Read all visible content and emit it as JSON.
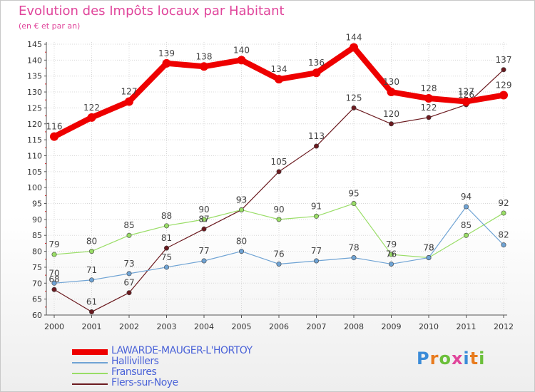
{
  "header": {
    "title": "Evolution des Impôts locaux par Habitant",
    "subtitle": "(en € et par an)"
  },
  "colors": {
    "title": "#e0459b",
    "legend_text": "#4b63d8",
    "tick_text": "#333333"
  },
  "logo": {
    "text": "Proxiti"
  },
  "chart_data": {
    "type": "line",
    "title": "Evolution des Impôts locaux par Habitant",
    "subtitle": "(en € et par an)",
    "xlabel": "",
    "ylabel": "",
    "x": [
      "2000",
      "2001",
      "2002",
      "2003",
      "2004",
      "2005",
      "2006",
      "2007",
      "2008",
      "2009",
      "2010",
      "2011",
      "2012"
    ],
    "ylim": [
      60,
      145
    ],
    "yticks": [
      60,
      65,
      70,
      75,
      80,
      85,
      90,
      95,
      100,
      105,
      110,
      115,
      120,
      125,
      130,
      135,
      140,
      145
    ],
    "grid": true,
    "legend_position": "bottom",
    "series": [
      {
        "name": "Flers-sur-Noye",
        "color": "#6b1a1f",
        "style": "thin",
        "values": [
          68,
          61,
          67,
          81,
          87,
          93,
          105,
          113,
          125,
          120,
          122,
          126,
          137
        ]
      },
      {
        "name": "Fransures",
        "color": "#99dd66",
        "style": "thin",
        "values": [
          79,
          80,
          85,
          88,
          90,
          93,
          90,
          91,
          95,
          79,
          78,
          85,
          92
        ]
      },
      {
        "name": "Hallivillers",
        "color": "#6fa3d4",
        "style": "thin",
        "values": [
          70,
          71,
          73,
          75,
          77,
          80,
          76,
          77,
          78,
          76,
          78,
          94,
          82
        ]
      },
      {
        "name": "LAWARDE-MAUGER-L'HORTOY",
        "color": "#ee0000",
        "style": "thick",
        "values": [
          116,
          122,
          127,
          139,
          138,
          140,
          134,
          136,
          144,
          130,
          128,
          127,
          129
        ]
      }
    ],
    "legend_order": [
      "LAWARDE-MAUGER-L'HORTOY",
      "Hallivillers",
      "Fransures",
      "Flers-sur-Noye"
    ]
  }
}
